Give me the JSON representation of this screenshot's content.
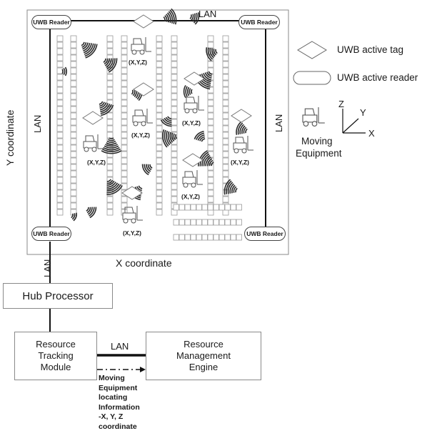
{
  "diagram": {
    "lan_label": "LAN",
    "reader_label": "UWB Reader",
    "coord_label": "(X,Y,Z)",
    "y_coordinate": "Y coordinate",
    "x_coordinate": "X coordinate",
    "legend": {
      "tag": "UWB active tag",
      "reader": "UWB active reader",
      "equipment_line1": "Moving",
      "equipment_line2": "Equipment",
      "axis_x": "X",
      "axis_y": "Y",
      "axis_z": "Z"
    },
    "hub_processor": "Hub Processor",
    "tracking_module": [
      "Resource",
      "Tracking",
      "Module"
    ],
    "management_engine": [
      "Resource",
      "Management",
      "Engine"
    ],
    "locating_info": [
      "Moving",
      "Equipment",
      "locating",
      "Information",
      "-X, Y, Z",
      "coordinate"
    ]
  }
}
